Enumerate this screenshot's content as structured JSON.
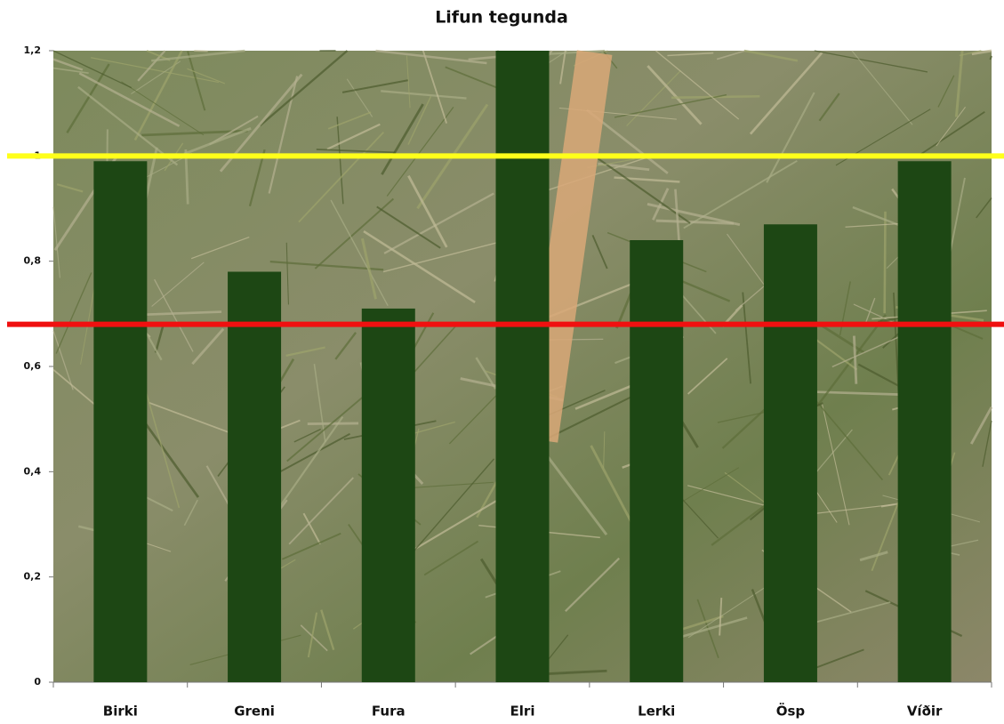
{
  "chart_data": {
    "type": "bar",
    "title": "Lifun tegunda",
    "categories": [
      "Birki",
      "Greni",
      "Fura",
      "Elri",
      "Lerki",
      "Ösp",
      "Víðir"
    ],
    "values": [
      0.99,
      0.78,
      0.71,
      1.2,
      0.84,
      0.87,
      0.99
    ],
    "color": "#1d4714",
    "ylim": [
      0,
      1.2
    ],
    "yticks": [
      0,
      {
        "value": 0.2,
        "label": "0,2"
      },
      {
        "value": 0.4,
        "label": "0,4"
      },
      {
        "value": 0.6,
        "label": "0,6"
      },
      {
        "value": 0.8,
        "label": "0,8"
      },
      1,
      {
        "value": 1.2,
        "label": "1,2"
      }
    ],
    "reference_lines": [
      {
        "value": 1,
        "color": "#ffff1a"
      },
      {
        "value": 0.68,
        "color": "#f01010"
      }
    ]
  }
}
